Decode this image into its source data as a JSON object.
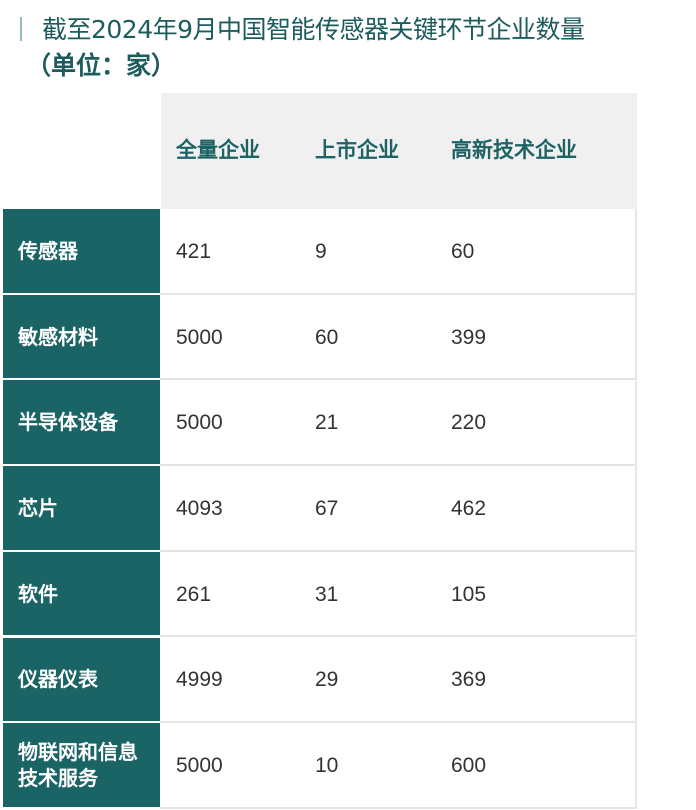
{
  "title": "截至2024年9月中国智能传感器关键环节企业数量",
  "subtitle": "（单位：家）",
  "colors": {
    "accent": "#1b6466",
    "header_bg": "#f0f0f0"
  },
  "chart_data": {
    "type": "table",
    "columns": [
      "全量企业",
      "上市企业",
      "高新技术企业"
    ],
    "rows": [
      {
        "label": "传感器",
        "values": [
          "421",
          "9",
          "60"
        ]
      },
      {
        "label": "敏感材料",
        "values": [
          "5000",
          "60",
          "399"
        ]
      },
      {
        "label": "半导体设备",
        "values": [
          "5000",
          "21",
          "220"
        ]
      },
      {
        "label": "芯片",
        "values": [
          "4093",
          "67",
          "462"
        ]
      },
      {
        "label": "软件",
        "values": [
          "261",
          "31",
          "105"
        ]
      },
      {
        "label": "仪器仪表",
        "values": [
          "4999",
          "29",
          "369"
        ]
      },
      {
        "label": "物联网和信息技术服务",
        "values": [
          "5000",
          "10",
          "600"
        ]
      }
    ]
  }
}
